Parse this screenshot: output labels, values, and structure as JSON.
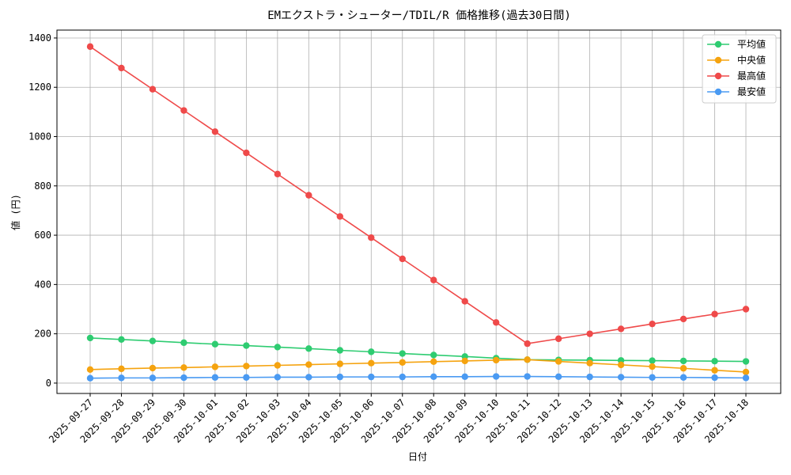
{
  "chart_data": {
    "type": "line",
    "title": "EMエクストラ・シューター/TDIL/R 価格推移(過去30日間)",
    "x_label": "日付",
    "y_label": "値 (円)",
    "categories": [
      "2025-09-27",
      "2025-09-28",
      "2025-09-29",
      "2025-09-30",
      "2025-10-01",
      "2025-10-02",
      "2025-10-03",
      "2025-10-04",
      "2025-10-05",
      "2025-10-06",
      "2025-10-07",
      "2025-10-08",
      "2025-10-09",
      "2025-10-10",
      "2025-10-11",
      "2025-10-12",
      "2025-10-13",
      "2025-10-14",
      "2025-10-15",
      "2025-10-16",
      "2025-10-17",
      "2025-10-18"
    ],
    "series": [
      {
        "name": "平均値",
        "color": "#2ecc71",
        "values": [
          183,
          177,
          171,
          164,
          158,
          152,
          146,
          140,
          133,
          127,
          120,
          114,
          108,
          101,
          95,
          94,
          93,
          92,
          91,
          90,
          89,
          88
        ]
      },
      {
        "name": "中央値",
        "color": "#f5a30f",
        "values": [
          55,
          58,
          61,
          63,
          66,
          69,
          72,
          75,
          78,
          81,
          84,
          87,
          90,
          93,
          95,
          88,
          81,
          74,
          67,
          60,
          52,
          45
        ]
      },
      {
        "name": "最高値",
        "color": "#ef4a4a",
        "values": [
          1365,
          1278,
          1192,
          1106,
          1020,
          934,
          848,
          762,
          676,
          590,
          504,
          418,
          332,
          246,
          160,
          180,
          200,
          220,
          240,
          260,
          280,
          300
        ]
      },
      {
        "name": "最安値",
        "color": "#4a9af2",
        "values": [
          20,
          21,
          21,
          22,
          23,
          23,
          24,
          24,
          25,
          25,
          25,
          26,
          26,
          27,
          27,
          26,
          25,
          24,
          23,
          23,
          22,
          21
        ]
      }
    ],
    "ylim": [
      -42,
      1432
    ],
    "yticks": [
      0,
      200,
      400,
      600,
      800,
      1000,
      1200,
      1400
    ],
    "grid": true,
    "legend": "upper right"
  }
}
